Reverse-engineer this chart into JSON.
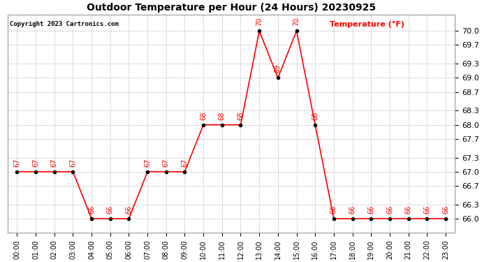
{
  "title": "Outdoor Temperature per Hour (24 Hours) 20230925",
  "copyright": "Copyright 2023 Cartronics.com",
  "legend_label": "Temperature (°F)",
  "hours": [
    0,
    1,
    2,
    3,
    4,
    5,
    6,
    7,
    8,
    9,
    10,
    11,
    12,
    13,
    14,
    15,
    16,
    17,
    18,
    19,
    20,
    21,
    22,
    23
  ],
  "temps": [
    67,
    67,
    67,
    67,
    66,
    66,
    66,
    67,
    67,
    67,
    68,
    68,
    68,
    70,
    69,
    70,
    68,
    66,
    66,
    66,
    66,
    66,
    66,
    66
  ],
  "line_color": "red",
  "marker_color": "black",
  "annotation_color": "red",
  "bg_color": "white",
  "grid_color": "#bbbbbb",
  "title_color": "black",
  "copyright_color": "black",
  "legend_color": "red",
  "ylim_min": 65.7,
  "ylim_max": 70.35,
  "yticks": [
    66.0,
    66.3,
    66.7,
    67.0,
    67.3,
    67.7,
    68.0,
    68.3,
    68.7,
    69.0,
    69.3,
    69.7,
    70.0
  ]
}
